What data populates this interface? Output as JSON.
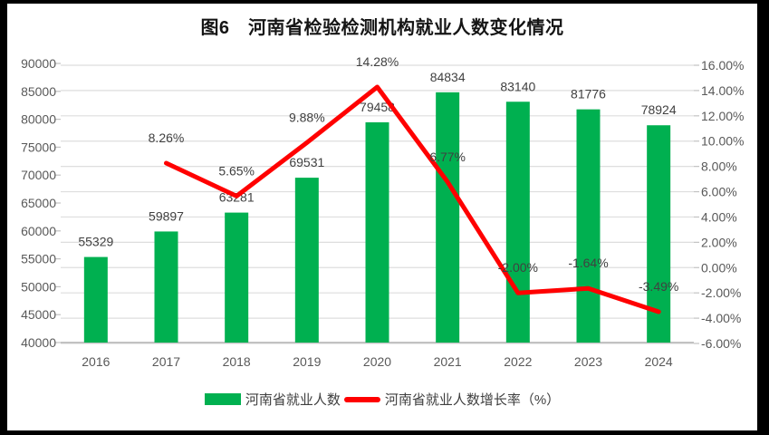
{
  "title": "图6　河南省检验检测机构就业人数变化情况",
  "colors": {
    "bar": "#00B050",
    "line": "#FF0000",
    "gridline": "#DEDEDE",
    "axis_line": "#C2C2C2",
    "axis_text": "#595959",
    "data_label": "#404040",
    "frame": "#000000",
    "panel": "#FFFFFF"
  },
  "chart_data": {
    "type": "bar+line combo",
    "categories": [
      "2016",
      "2017",
      "2018",
      "2019",
      "2020",
      "2021",
      "2022",
      "2023",
      "2024"
    ],
    "series": [
      {
        "name": "河南省就业人数",
        "type": "bar",
        "axis": "left",
        "color": "#00B050",
        "values": [
          55329,
          59897,
          63281,
          69531,
          79458,
          84834,
          83140,
          81776,
          78924
        ],
        "labels": [
          "55329",
          "59897",
          "63281",
          "69531",
          "79458",
          "84834",
          "83140",
          "81776",
          "78924"
        ]
      },
      {
        "name": "河南省就业人数增长率（%）",
        "type": "line",
        "axis": "right",
        "color": "#FF0000",
        "values": [
          null,
          8.26,
          5.65,
          9.88,
          14.28,
          6.77,
          -2.0,
          -1.64,
          -3.49
        ],
        "labels": [
          null,
          "8.26%",
          "5.65%",
          "9.88%",
          "14.28%",
          "6.77%",
          "-2.00%",
          "-1.64%",
          "-3.49%"
        ]
      }
    ],
    "left_axis": {
      "min": 40000,
      "max": 90000,
      "step": 5000,
      "tick_labels": [
        "90000",
        "85000",
        "80000",
        "75000",
        "70000",
        "65000",
        "60000",
        "55000",
        "50000",
        "45000",
        "40000"
      ]
    },
    "right_axis": {
      "min": -6,
      "max": 16,
      "step": 2,
      "tick_labels": [
        "16.00%",
        "14.00%",
        "12.00%",
        "10.00%",
        "8.00%",
        "6.00%",
        "4.00%",
        "2.00%",
        "0.00%",
        "-2.00%",
        "-4.00%",
        "-6.00%"
      ]
    },
    "grid": "horizontal gridlines on secondary (right) axis",
    "legend_position": "bottom"
  },
  "legend": {
    "items": [
      {
        "label": "河南省就业人数",
        "marker": "rect",
        "color": "#00B050"
      },
      {
        "label": "河南省就业人数增长率（%）",
        "marker": "line",
        "color": "#FF0000"
      }
    ]
  }
}
